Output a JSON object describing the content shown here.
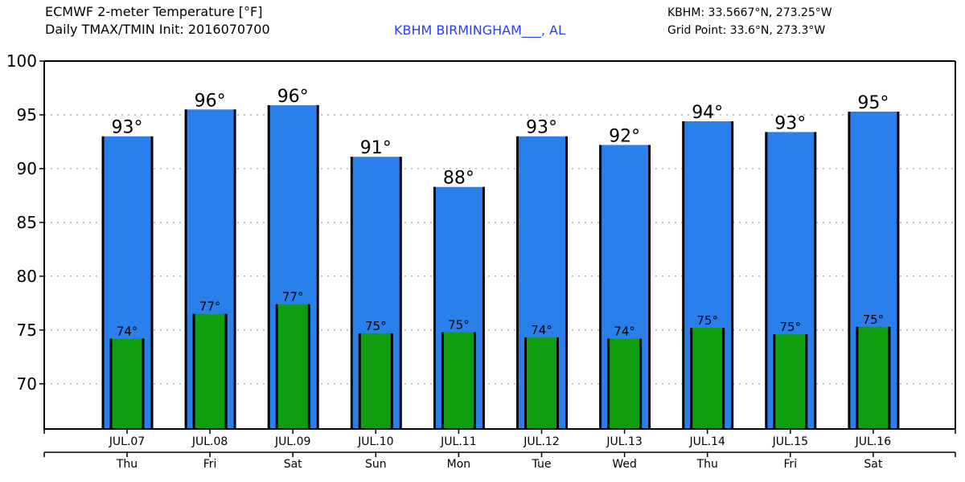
{
  "header": {
    "title_line1": "ECMWF 2-meter Temperature [°F]",
    "title_line2": "Daily TMAX/TMIN Init: 2016070700",
    "station": "KBHM BIRMINGHAM___, AL",
    "station_coords": "KBHM: 33.5667°N, 273.25°W",
    "grid_point": "Grid Point: 33.6°N, 273.3°W"
  },
  "colors": {
    "tmax": "#2a80ea",
    "tmin": "#109e10",
    "station_text": "#2a3ff0",
    "grid": "#b0b0b0"
  },
  "chart_data": {
    "type": "bar",
    "title": "ECMWF 2-meter Temperature [°F]",
    "subtitle": "Daily TMAX/TMIN Init: 2016070700",
    "xlabel": "",
    "ylabel": "",
    "ylim": [
      65.8,
      100
    ],
    "yticks": [
      70,
      75,
      80,
      85,
      90,
      95,
      100
    ],
    "grid": true,
    "categories": [
      "JUL.07",
      "JUL.08",
      "JUL.09",
      "JUL.10",
      "JUL.11",
      "JUL.12",
      "JUL.13",
      "JUL.14",
      "JUL.15",
      "JUL.16"
    ],
    "weekdays": [
      "Thu",
      "Fri",
      "Sat",
      "Sun",
      "Mon",
      "Tue",
      "Wed",
      "Thu",
      "Fri",
      "Sat"
    ],
    "series": [
      {
        "name": "TMAX",
        "values": [
          93.0,
          95.5,
          95.9,
          91.1,
          88.3,
          93.0,
          92.2,
          94.4,
          93.4,
          95.3
        ],
        "labels": [
          "93°",
          "96°",
          "96°",
          "91°",
          "88°",
          "93°",
          "92°",
          "94°",
          "93°",
          "95°"
        ]
      },
      {
        "name": "TMIN",
        "values": [
          74.2,
          76.5,
          77.4,
          74.7,
          74.8,
          74.3,
          74.2,
          75.2,
          74.6,
          75.3
        ],
        "labels": [
          "74°",
          "77°",
          "77°",
          "75°",
          "75°",
          "74°",
          "74°",
          "75°",
          "75°",
          "75°"
        ]
      }
    ]
  }
}
